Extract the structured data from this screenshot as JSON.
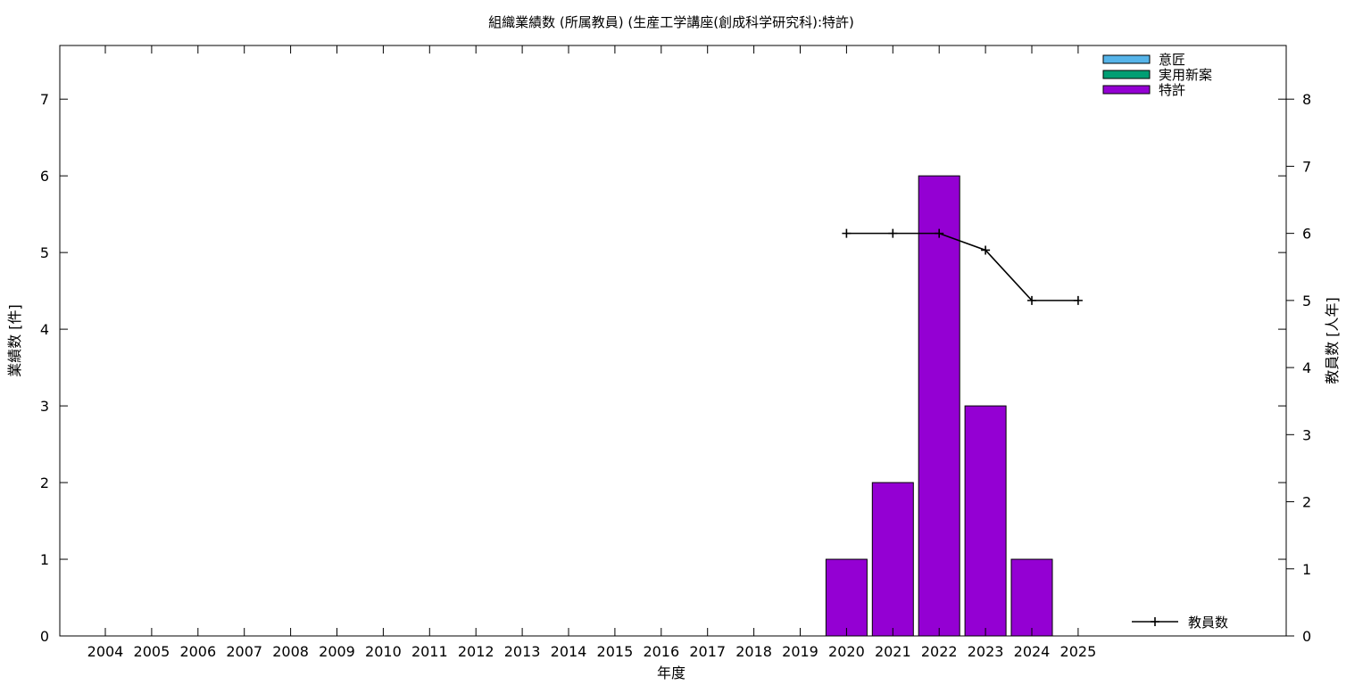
{
  "chart_data": {
    "type": "bar",
    "title": "組織業績数 (所属教員) (生産工学講座(創成科学研究科):特許)",
    "xlabel": "年度",
    "ylabel": "業績数 [件]",
    "y2label": "教員数 [人年]",
    "categories": [
      "2004",
      "2005",
      "2006",
      "2007",
      "2008",
      "2009",
      "2010",
      "2011",
      "2012",
      "2013",
      "2014",
      "2015",
      "2016",
      "2017",
      "2018",
      "2019",
      "2020",
      "2021",
      "2022",
      "2023",
      "2024",
      "2025"
    ],
    "ylim": [
      0,
      7.7
    ],
    "y2lim": [
      0,
      8.8
    ],
    "yticks": [
      0,
      1,
      2,
      3,
      4,
      5,
      6,
      7
    ],
    "y2ticks": [
      0,
      1,
      2,
      3,
      4,
      5,
      6,
      7,
      8
    ],
    "series": [
      {
        "name": "意匠",
        "color": "#56b4e9",
        "values": [
          0,
          0,
          0,
          0,
          0,
          0,
          0,
          0,
          0,
          0,
          0,
          0,
          0,
          0,
          0,
          0,
          0,
          0,
          0,
          0,
          0,
          0
        ]
      },
      {
        "name": "実用新案",
        "color": "#009e73",
        "values": [
          0,
          0,
          0,
          0,
          0,
          0,
          0,
          0,
          0,
          0,
          0,
          0,
          0,
          0,
          0,
          0,
          0,
          0,
          0,
          0,
          0,
          0
        ]
      },
      {
        "name": "特許",
        "color": "#9400d3",
        "values": [
          0,
          0,
          0,
          0,
          0,
          0,
          0,
          0,
          0,
          0,
          0,
          0,
          0,
          0,
          0,
          0,
          1,
          2,
          6,
          3,
          1,
          0
        ]
      }
    ],
    "line_series": {
      "name": "教員数",
      "color": "#000000",
      "x": [
        "2020",
        "2021",
        "2022",
        "2023",
        "2024",
        "2025"
      ],
      "values": [
        6,
        6,
        6,
        5.75,
        5,
        5
      ]
    },
    "legend_position": "top-right"
  }
}
